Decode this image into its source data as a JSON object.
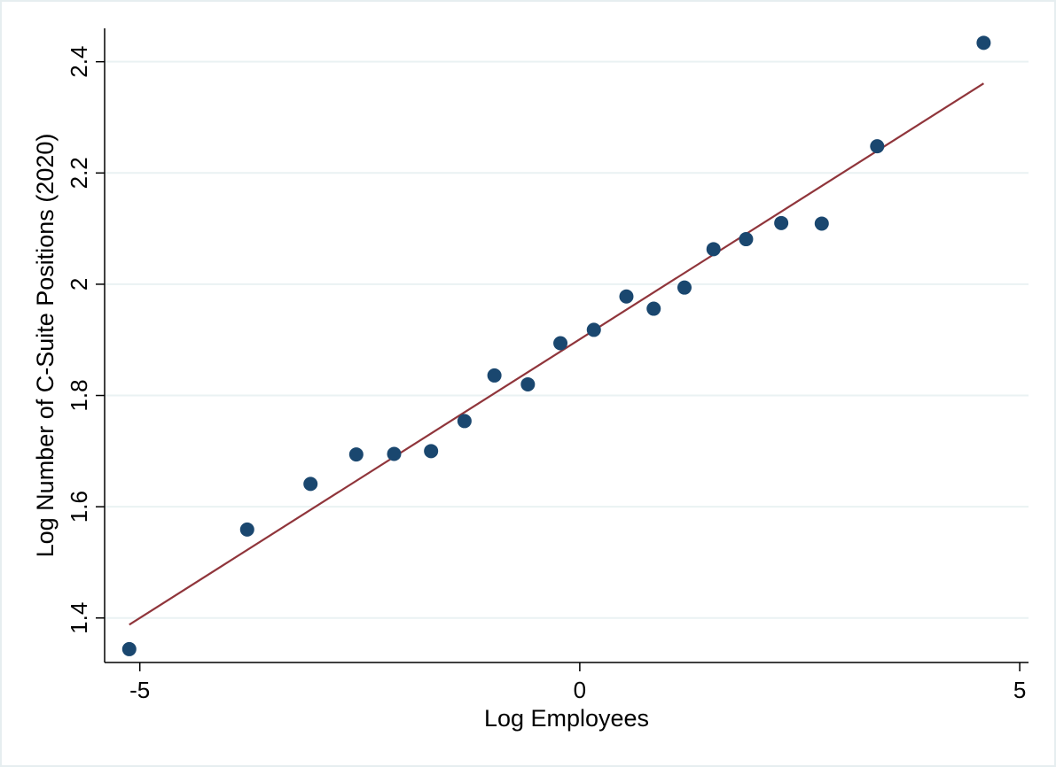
{
  "chart_data": {
    "type": "scatter",
    "xlabel": "Log Employees",
    "ylabel": "Log Number of C-Suite Positions (2020)",
    "xlim": [
      -5.4,
      5.1
    ],
    "ylim": [
      1.32,
      2.46
    ],
    "xticks": [
      -5,
      0,
      5
    ],
    "xtick_labels": [
      "-5",
      "0",
      "5"
    ],
    "yticks": [
      1.4,
      1.6,
      1.8,
      2.0,
      2.2,
      2.4
    ],
    "ytick_labels": [
      "1.4",
      "1.6",
      "1.8",
      "2",
      "2.2",
      "2.4"
    ],
    "grid": "horizontal",
    "legend": "none",
    "points": [
      {
        "x": -5.12,
        "y": 1.344
      },
      {
        "x": -3.78,
        "y": 1.559
      },
      {
        "x": -3.06,
        "y": 1.641
      },
      {
        "x": -2.54,
        "y": 1.694
      },
      {
        "x": -2.11,
        "y": 1.695
      },
      {
        "x": -1.69,
        "y": 1.7
      },
      {
        "x": -1.31,
        "y": 1.754
      },
      {
        "x": -0.97,
        "y": 1.836
      },
      {
        "x": -0.59,
        "y": 1.82
      },
      {
        "x": -0.22,
        "y": 1.894
      },
      {
        "x": 0.16,
        "y": 1.918
      },
      {
        "x": 0.53,
        "y": 1.978
      },
      {
        "x": 0.84,
        "y": 1.956
      },
      {
        "x": 1.19,
        "y": 1.994
      },
      {
        "x": 1.52,
        "y": 2.063
      },
      {
        "x": 1.89,
        "y": 2.081
      },
      {
        "x": 2.29,
        "y": 2.11
      },
      {
        "x": 2.75,
        "y": 2.109
      },
      {
        "x": 3.38,
        "y": 2.248
      },
      {
        "x": 4.59,
        "y": 2.434
      }
    ],
    "fit_line": {
      "x": [
        -5.12,
        4.59
      ],
      "y": [
        1.388,
        2.361
      ]
    },
    "colors": {
      "points": "#1a476f",
      "fit_line": "#90353b",
      "grid": "#eaf2f3",
      "frame_border": "#e6eef0",
      "axis": "#000000"
    }
  }
}
